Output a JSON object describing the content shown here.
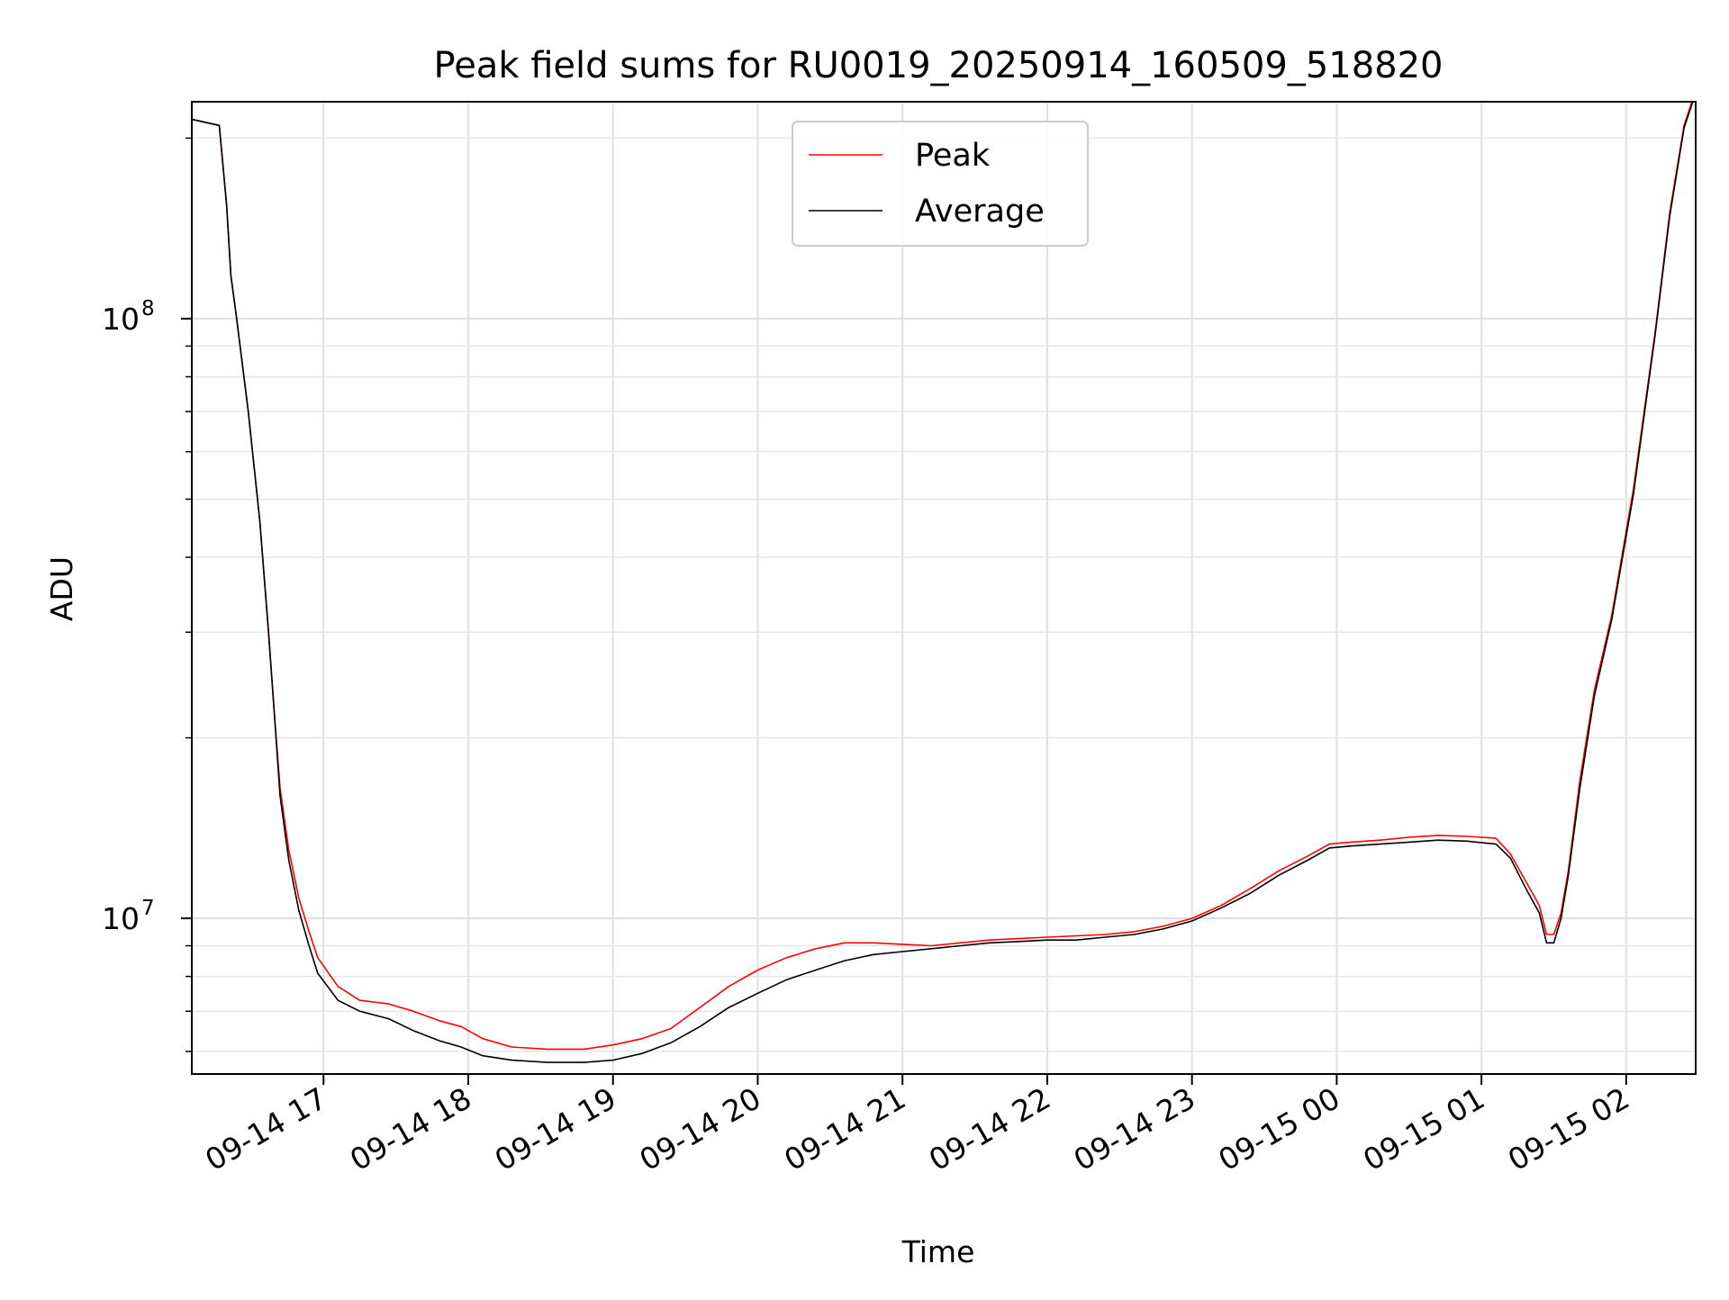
{
  "chart_data": {
    "type": "line",
    "title": "Peak field sums for RU0019_20250914_160509_518820",
    "xlabel": "Time",
    "ylabel": "ADU",
    "yscale": "log",
    "xlim_hours": [
      16.09,
      26.48
    ],
    "ylim": [
      5500000,
      230000000
    ],
    "grid": true,
    "grid_minor": true,
    "legend_position": "top-center",
    "x_ticks": [
      {
        "hour": 17,
        "label": "09-14 17"
      },
      {
        "hour": 18,
        "label": "09-14 18"
      },
      {
        "hour": 19,
        "label": "09-14 19"
      },
      {
        "hour": 20,
        "label": "09-14 20"
      },
      {
        "hour": 21,
        "label": "09-14 21"
      },
      {
        "hour": 22,
        "label": "09-14 22"
      },
      {
        "hour": 23,
        "label": "09-14 23"
      },
      {
        "hour": 24,
        "label": "09-15 00"
      },
      {
        "hour": 25,
        "label": "09-15 01"
      },
      {
        "hour": 26,
        "label": "09-15 02"
      }
    ],
    "y_ticks": [
      {
        "value": 10000000,
        "base": "10",
        "exp": "7"
      },
      {
        "value": 100000000,
        "base": "10",
        "exp": "8"
      }
    ],
    "series": [
      {
        "name": "Peak",
        "color": "#ff0000",
        "x_hours": [
          16.09,
          16.28,
          16.33,
          16.36,
          16.4,
          16.48,
          16.56,
          16.62,
          16.66,
          16.7,
          16.76,
          16.83,
          16.9,
          16.96,
          17.1,
          17.25,
          17.45,
          17.62,
          17.8,
          17.95,
          18.1,
          18.3,
          18.55,
          18.8,
          19.0,
          19.2,
          19.4,
          19.6,
          19.8,
          20.0,
          20.2,
          20.4,
          20.6,
          20.8,
          21.0,
          21.2,
          21.4,
          21.6,
          21.8,
          22.0,
          22.2,
          22.4,
          22.6,
          22.8,
          23.0,
          23.2,
          23.4,
          23.6,
          23.8,
          23.95,
          24.1,
          24.3,
          24.5,
          24.7,
          24.9,
          25.1,
          25.2,
          25.3,
          25.4,
          25.45,
          25.5,
          25.55,
          25.6,
          25.68,
          25.78,
          25.9,
          26.05,
          26.2,
          26.3,
          26.4,
          26.48
        ],
        "y": [
          215000000,
          210000000,
          155000000,
          118000000,
          100000000,
          70000000,
          46000000,
          30000000,
          22000000,
          16500000,
          13000000,
          10800000,
          9500000,
          8600000,
          7700000,
          7300000,
          7200000,
          7000000,
          6750000,
          6600000,
          6300000,
          6100000,
          6050000,
          6050000,
          6150000,
          6300000,
          6550000,
          7100000,
          7700000,
          8200000,
          8600000,
          8900000,
          9100000,
          9100000,
          9050000,
          9000000,
          9100000,
          9200000,
          9250000,
          9300000,
          9350000,
          9400000,
          9500000,
          9700000,
          10000000,
          10500000,
          11200000,
          12000000,
          12700000,
          13300000,
          13400000,
          13500000,
          13650000,
          13750000,
          13700000,
          13600000,
          12800000,
          11600000,
          10500000,
          9400000,
          9400000,
          10200000,
          12000000,
          17000000,
          24000000,
          32000000,
          52000000,
          95000000,
          150000000,
          210000000,
          240000000
        ]
      },
      {
        "name": "Average",
        "color": "#000000",
        "x_hours": [
          16.09,
          16.28,
          16.33,
          16.36,
          16.4,
          16.48,
          16.56,
          16.62,
          16.66,
          16.7,
          16.76,
          16.83,
          16.9,
          16.96,
          17.1,
          17.25,
          17.45,
          17.62,
          17.8,
          17.95,
          18.1,
          18.3,
          18.55,
          18.8,
          19.0,
          19.2,
          19.4,
          19.6,
          19.8,
          20.0,
          20.2,
          20.4,
          20.6,
          20.8,
          21.0,
          21.2,
          21.4,
          21.6,
          21.8,
          22.0,
          22.2,
          22.4,
          22.6,
          22.8,
          23.0,
          23.2,
          23.4,
          23.6,
          23.8,
          23.95,
          24.1,
          24.3,
          24.5,
          24.7,
          24.9,
          25.1,
          25.2,
          25.3,
          25.4,
          25.45,
          25.5,
          25.55,
          25.6,
          25.68,
          25.78,
          25.9,
          26.05,
          26.2,
          26.3,
          26.4,
          26.48
        ],
        "y": [
          215000000,
          210000000,
          155000000,
          118000000,
          100000000,
          70000000,
          46000000,
          30000000,
          22000000,
          16000000,
          12500000,
          10300000,
          9000000,
          8100000,
          7300000,
          7000000,
          6800000,
          6500000,
          6250000,
          6100000,
          5900000,
          5800000,
          5750000,
          5750000,
          5800000,
          5950000,
          6200000,
          6600000,
          7100000,
          7500000,
          7900000,
          8200000,
          8500000,
          8700000,
          8800000,
          8900000,
          9000000,
          9100000,
          9150000,
          9200000,
          9200000,
          9300000,
          9400000,
          9600000,
          9900000,
          10400000,
          11000000,
          11800000,
          12500000,
          13100000,
          13200000,
          13300000,
          13400000,
          13500000,
          13450000,
          13300000,
          12600000,
          11300000,
          10200000,
          9100000,
          9100000,
          10000000,
          11800000,
          16500000,
          23500000,
          31500000,
          51000000,
          94000000,
          148000000,
          208000000,
          238000000
        ]
      }
    ]
  }
}
